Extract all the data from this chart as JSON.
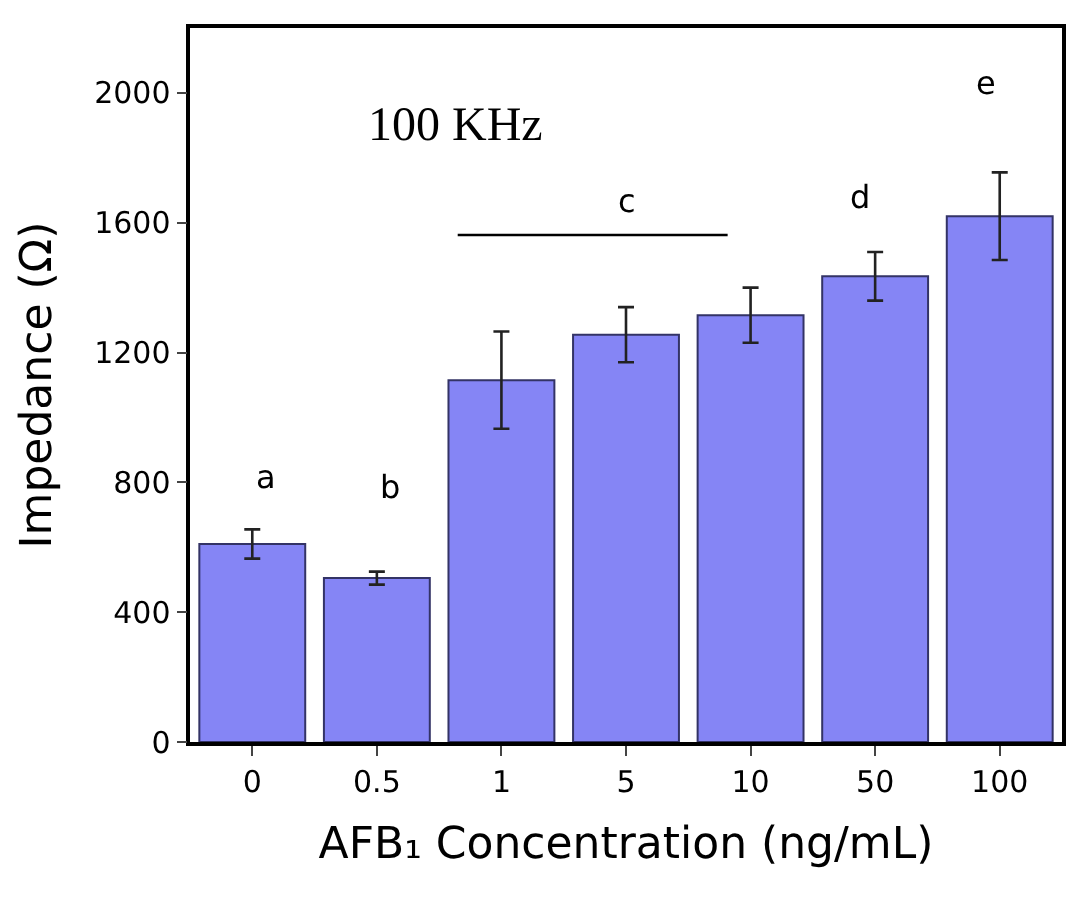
{
  "chart_data": {
    "type": "bar",
    "xlabel": "AFB₁ Concentration (ng/mL)",
    "ylabel": "Impedance (Ω)",
    "categories": [
      "0",
      "0.5",
      "1",
      "5",
      "10",
      "50",
      "100"
    ],
    "values": [
      610,
      505,
      1115,
      1255,
      1315,
      1435,
      1620
    ],
    "errors": [
      45,
      20,
      150,
      85,
      85,
      75,
      135
    ],
    "color": "#8585f5",
    "ylim": [
      0,
      2200
    ],
    "yticks": [
      0,
      400,
      800,
      1200,
      1600,
      2000
    ],
    "annotations": [
      "100 KHz",
      "a",
      "b",
      "c",
      "d",
      "e"
    ]
  }
}
